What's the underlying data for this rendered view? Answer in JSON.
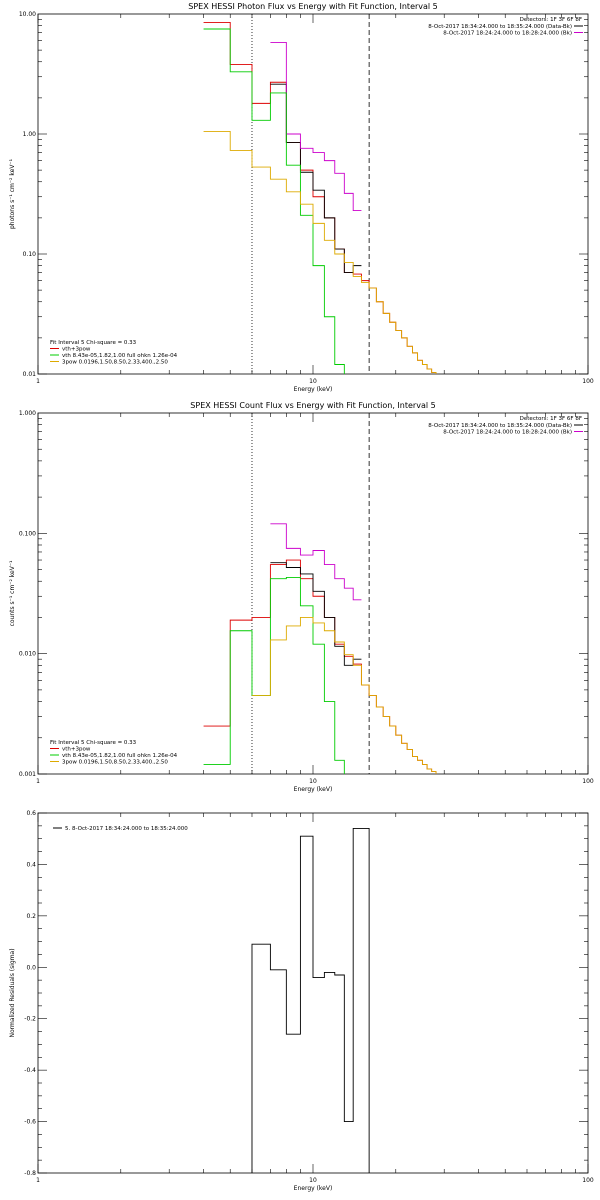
{
  "chart_data": [
    {
      "type": "line",
      "title": "SPEX HESSI Photon Flux vs Energy with Fit Function, Interval 5",
      "xlabel": "Energy (keV)",
      "ylabel": "photons s⁻¹ cm⁻² keV⁻¹",
      "xscale": "log",
      "yscale": "log",
      "xlim": [
        1,
        100
      ],
      "ylim": [
        0.01,
        10
      ],
      "xtick_labels": [
        {
          "v": 1,
          "label": "1"
        },
        {
          "v": 10,
          "label": "10"
        },
        {
          "v": 100,
          "label": "100"
        }
      ],
      "ytick_labels": [
        {
          "v": 0.01,
          "label": "0.01"
        },
        {
          "v": 0.1,
          "label": "0.10"
        },
        {
          "v": 1,
          "label": "1.00"
        },
        {
          "v": 10,
          "label": "10.00"
        }
      ],
      "detectors_label": "Detectors: 1F 3F 6F 8F",
      "header_legend": [
        {
          "label": "8-Oct-2017 18:34:24.000 to 18:35:24.000 (Data-Bk)",
          "color": "#000000"
        },
        {
          "label": "8-Oct-2017 18:24:24.000 to 18:28:24.000 (Bk)",
          "color": "#cc00cc"
        }
      ],
      "fit_label": "Fit Interval 5   Chi-square = 0.33",
      "fit_legend": [
        {
          "label": "vth+3pow",
          "color": "#dd0000"
        },
        {
          "label": "vth 8.43e-05,1.82,1.00   full ohkn 1.26e-04",
          "color": "#00cc00"
        },
        {
          "label": "3pow 0.0196,1.50,8.50,2.33,400.,2.50",
          "color": "#ddaa00"
        }
      ],
      "vlines": [
        {
          "x": 6.0,
          "style": "dotted"
        },
        {
          "x": 16.0,
          "style": "dashed"
        }
      ],
      "bin_edges": [
        4,
        5,
        6,
        7,
        8,
        9,
        10,
        11,
        12,
        13,
        14,
        15,
        16,
        17,
        18,
        19,
        20,
        21,
        22,
        23,
        24,
        25,
        26,
        27,
        28,
        30
      ],
      "series": [
        {
          "name": "vth+3pow",
          "color": "#dd0000",
          "values": [
            8.5,
            3.8,
            1.8,
            2.7,
            0.85,
            0.5,
            0.3,
            0.2,
            0.11,
            0.07,
            0.068,
            0.06,
            0.052,
            0.04,
            0.032,
            0.027,
            0.023,
            0.02,
            0.017,
            0.015,
            0.013,
            0.012,
            0.011,
            0.0103,
            null
          ]
        },
        {
          "color": "#000000",
          "values": [
            null,
            null,
            null,
            2.6,
            0.85,
            0.48,
            0.34,
            0.2,
            0.11,
            0.07,
            0.08,
            null,
            null,
            null,
            null,
            null,
            null,
            null,
            null,
            null,
            null,
            null,
            null,
            null,
            null
          ]
        },
        {
          "color": "#cc00cc",
          "values": [
            null,
            null,
            null,
            5.8,
            1.0,
            0.76,
            0.7,
            0.6,
            0.47,
            0.32,
            0.23,
            null,
            null,
            null,
            null,
            null,
            null,
            null,
            null,
            null,
            null,
            null,
            null,
            null,
            null
          ]
        },
        {
          "color": "#00cc00",
          "values": [
            7.5,
            3.3,
            1.3,
            2.2,
            0.55,
            0.21,
            0.08,
            0.03,
            0.012,
            null,
            null,
            null,
            null,
            null,
            null,
            null,
            null,
            null,
            null,
            null,
            null,
            null,
            null,
            null,
            null
          ]
        },
        {
          "color": "#ddaa00",
          "values": [
            1.05,
            0.73,
            0.53,
            0.42,
            0.33,
            0.26,
            0.18,
            0.13,
            0.1,
            0.085,
            0.065,
            0.058,
            0.052,
            0.04,
            0.032,
            0.027,
            0.023,
            0.02,
            0.017,
            0.015,
            0.013,
            0.012,
            0.011,
            0.0103,
            null
          ]
        }
      ]
    },
    {
      "type": "line",
      "title": "SPEX HESSI Count Flux vs Energy with Fit Function, Interval 5",
      "xlabel": "Energy (keV)",
      "ylabel": "counts s⁻¹ cm⁻² keV⁻¹",
      "xscale": "log",
      "yscale": "log",
      "xlim": [
        1,
        100
      ],
      "ylim": [
        0.001,
        1
      ],
      "xtick_labels": [
        {
          "v": 1,
          "label": "1"
        },
        {
          "v": 10,
          "label": "10"
        },
        {
          "v": 100,
          "label": "100"
        }
      ],
      "ytick_labels": [
        {
          "v": 0.001,
          "label": "0.001"
        },
        {
          "v": 0.01,
          "label": "0.010"
        },
        {
          "v": 0.1,
          "label": "0.100"
        },
        {
          "v": 1,
          "label": "1.000"
        }
      ],
      "detectors_label": "Detectors: 1F 3F 6F 8F",
      "header_legend": [
        {
          "label": "8-Oct-2017 18:34:24.000 to 18:35:24.000 (Data-Bk)",
          "color": "#000000"
        },
        {
          "label": "8-Oct-2017 18:24:24.000 to 18:28:24.000 (Bk)",
          "color": "#cc00cc"
        }
      ],
      "fit_label": "Fit Interval 5   Chi-square = 0.33",
      "fit_legend": [
        {
          "label": "vth+3pow",
          "color": "#dd0000"
        },
        {
          "label": "vth 8.43e-05,1.82,1.00   full ohkn 1.26e-04",
          "color": "#00cc00"
        },
        {
          "label": "3pow 0.0196,1.50,8.50,2.33,400.,2.50",
          "color": "#ddaa00"
        }
      ],
      "vlines": [
        {
          "x": 6.0,
          "style": "dotted"
        },
        {
          "x": 16.0,
          "style": "dashed"
        }
      ],
      "bin_edges": [
        4,
        5,
        6,
        7,
        8,
        9,
        10,
        11,
        12,
        13,
        14,
        15,
        16,
        17,
        18,
        19,
        20,
        21,
        22,
        23,
        24,
        25,
        26,
        27,
        28,
        30
      ],
      "series": [
        {
          "name": "vth+3pow",
          "color": "#dd0000",
          "values": [
            0.0025,
            0.019,
            0.02,
            0.055,
            0.06,
            0.042,
            0.03,
            0.02,
            0.012,
            0.0095,
            0.0082,
            0.0055,
            0.0045,
            0.0036,
            0.003,
            0.0025,
            0.0021,
            0.0018,
            0.0016,
            0.0014,
            0.0013,
            0.0012,
            0.0011,
            0.00105,
            null
          ]
        },
        {
          "color": "#000000",
          "values": [
            null,
            null,
            null,
            0.057,
            0.052,
            0.046,
            0.033,
            0.02,
            0.0115,
            0.008,
            0.009,
            null,
            null,
            null,
            null,
            null,
            null,
            null,
            null,
            null,
            null,
            null,
            null,
            null,
            null
          ]
        },
        {
          "color": "#cc00cc",
          "values": [
            null,
            null,
            null,
            0.12,
            0.075,
            0.066,
            0.072,
            0.055,
            0.042,
            0.035,
            0.028,
            null,
            null,
            null,
            null,
            null,
            null,
            null,
            null,
            null,
            null,
            null,
            null,
            null,
            null
          ]
        },
        {
          "color": "#00cc00",
          "values": [
            0.0012,
            0.0155,
            0.0045,
            0.042,
            0.043,
            0.025,
            0.012,
            0.004,
            0.0013,
            null,
            null,
            null,
            null,
            null,
            null,
            null,
            null,
            null,
            null,
            null,
            null,
            null,
            null,
            null,
            null
          ]
        },
        {
          "color": "#ddaa00",
          "values": [
            null,
            null,
            0.0045,
            0.013,
            0.017,
            0.02,
            0.018,
            0.0155,
            0.0125,
            0.0098,
            0.008,
            0.0055,
            0.0045,
            0.0036,
            0.003,
            0.0025,
            0.0021,
            0.0018,
            0.0016,
            0.0014,
            0.0013,
            0.0012,
            0.0011,
            0.00105,
            null
          ]
        }
      ]
    },
    {
      "type": "line",
      "title": "",
      "xlabel": "Energy (keV)",
      "ylabel": "Normalized Residuals (sigma)",
      "xscale": "log",
      "yscale": "linear",
      "xlim": [
        1,
        100
      ],
      "ylim": [
        -0.8,
        0.6
      ],
      "xtick_labels": [
        {
          "v": 1,
          "label": "1"
        },
        {
          "v": 10,
          "label": "10"
        },
        {
          "v": 100,
          "label": "100"
        }
      ],
      "ytick_labels": [
        {
          "v": -0.8,
          "label": "-0.8"
        },
        {
          "v": -0.6,
          "label": "-0.6"
        },
        {
          "v": -0.4,
          "label": "-0.4"
        },
        {
          "v": -0.2,
          "label": "-0.2"
        },
        {
          "v": 0.0,
          "label": "0.0"
        },
        {
          "v": 0.2,
          "label": "0.2"
        },
        {
          "v": 0.4,
          "label": "0.4"
        },
        {
          "v": 0.6,
          "label": "0.6"
        }
      ],
      "legend": [
        {
          "label": "5.  8-Oct-2017 18:34:24.000 to 18:35:24.000",
          "color": "#000000"
        }
      ],
      "bin_edges": [
        6,
        7,
        8,
        9,
        10,
        11,
        12,
        13,
        14,
        16
      ],
      "series": [
        {
          "color": "#000000",
          "values": [
            0.09,
            -0.01,
            -0.26,
            0.51,
            -0.04,
            -0.02,
            -0.03,
            -0.6,
            0.54
          ]
        }
      ]
    }
  ]
}
